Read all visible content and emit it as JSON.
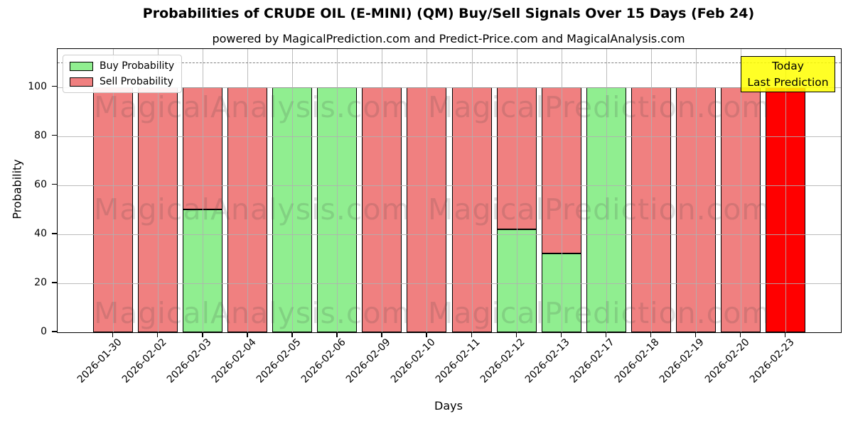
{
  "title": "Probabilities of CRUDE OIL (E-MINI) (QM) Buy/Sell Signals Over 15 Days (Feb 24)",
  "subtitle": "powered by MagicalPrediction.com and Predict-Price.com and MagicalAnalysis.com",
  "legend": {
    "items": [
      {
        "label": "Buy Probability",
        "color": "#90ee90"
      },
      {
        "label": "Sell Probability",
        "color": "#f08080"
      }
    ]
  },
  "annotation_box": {
    "lines": [
      "Today",
      "Last Prediction"
    ],
    "bg_color": "#ffff00",
    "border_color": "#000000"
  },
  "watermarks": {
    "left_text": "MagicalAnalysis.com",
    "right_text": "MagicalPrediction.com"
  },
  "chart_data": {
    "type": "bar",
    "stacked": true,
    "title": "Probabilities of CRUDE OIL (E-MINI) (QM) Buy/Sell Signals Over 15 Days (Feb 24)",
    "xlabel": "Days",
    "ylabel": "Probability",
    "ylim": [
      0,
      115.5
    ],
    "yticks": [
      0,
      20,
      40,
      60,
      80,
      100
    ],
    "grid": true,
    "dashed_hline": 110,
    "legend_position": "upper left",
    "categories": [
      "2026-01-30",
      "2026-02-02",
      "2026-02-03",
      "2026-02-04",
      "2026-02-05",
      "2026-02-06",
      "2026-02-09",
      "2026-02-10",
      "2026-02-11",
      "2026-02-12",
      "2026-02-13",
      "2026-02-17",
      "2026-02-18",
      "2026-02-19",
      "2026-02-20",
      "2026-02-23"
    ],
    "series": [
      {
        "name": "Buy Probability",
        "color": "#90ee90",
        "values": [
          0,
          0,
          50,
          0,
          100,
          100,
          0,
          0,
          0,
          42,
          32,
          100,
          0,
          0,
          0,
          0
        ]
      },
      {
        "name": "Sell Probability",
        "color": "#f08080",
        "values": [
          100,
          100,
          50,
          100,
          0,
          0,
          100,
          100,
          100,
          58,
          68,
          0,
          100,
          100,
          100,
          0
        ]
      },
      {
        "name": "Today Last Prediction",
        "color": "#ff0000",
        "values": [
          0,
          0,
          0,
          0,
          0,
          0,
          0,
          0,
          0,
          0,
          0,
          0,
          0,
          0,
          0,
          100
        ]
      }
    ]
  }
}
